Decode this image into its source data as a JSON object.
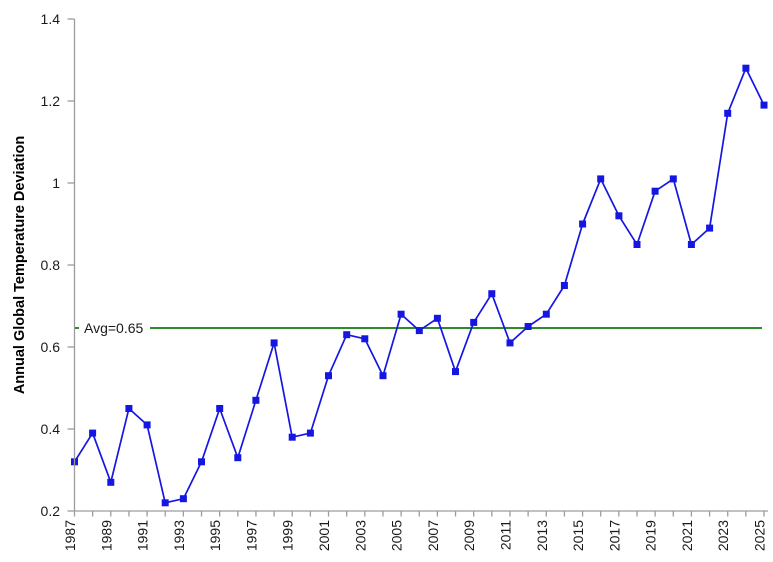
{
  "chart_data": {
    "type": "line",
    "title": "",
    "xlabel": "",
    "ylabel": "Annual Global Temperature Deviation",
    "x_years": [
      1987,
      1988,
      1989,
      1990,
      1991,
      1992,
      1993,
      1994,
      1995,
      1996,
      1997,
      1998,
      1999,
      2000,
      2001,
      2002,
      2003,
      2004,
      2005,
      2006,
      2007,
      2008,
      2009,
      2010,
      2011,
      2012,
      2013,
      2014,
      2015,
      2016,
      2017,
      2018,
      2019,
      2020,
      2021,
      2022,
      2023,
      2024,
      2025
    ],
    "series": [
      {
        "name": "annual-global-temperature-deviation",
        "values": [
          0.32,
          0.39,
          0.27,
          0.45,
          0.41,
          0.22,
          0.23,
          0.32,
          0.45,
          0.33,
          0.47,
          0.61,
          0.38,
          0.39,
          0.53,
          0.63,
          0.62,
          0.53,
          0.68,
          0.64,
          0.67,
          0.54,
          0.66,
          0.73,
          0.61,
          0.65,
          0.68,
          0.75,
          0.9,
          1.01,
          0.92,
          0.85,
          0.98,
          1.01,
          0.85,
          0.89,
          1.17,
          1.28,
          1.19
        ],
        "color": "#1616e2",
        "marker": "square"
      }
    ],
    "average_line": {
      "label": "Avg=0.65",
      "display_value": 0.65,
      "color": "#0e7b0e"
    },
    "ylim": [
      0.2,
      1.4
    ],
    "yticks": [
      0.2,
      0.4,
      0.6,
      0.8,
      1.0,
      1.2,
      1.4
    ],
    "ytick_labels": [
      "0.2",
      "0.4",
      "0.6",
      "0.8",
      "1",
      "1.2",
      "1.4"
    ],
    "xtick_labeled_years": [
      1987,
      1989,
      1991,
      1993,
      1995,
      1997,
      1999,
      2001,
      2003,
      2005,
      2007,
      2009,
      2011,
      2013,
      2015,
      2017,
      2019,
      2021,
      2023,
      2025
    ],
    "grid": false,
    "legend": "none",
    "axis_color": "#9c9c9c",
    "label_color": "#1a1a1a",
    "background_color": "#ffffff"
  }
}
